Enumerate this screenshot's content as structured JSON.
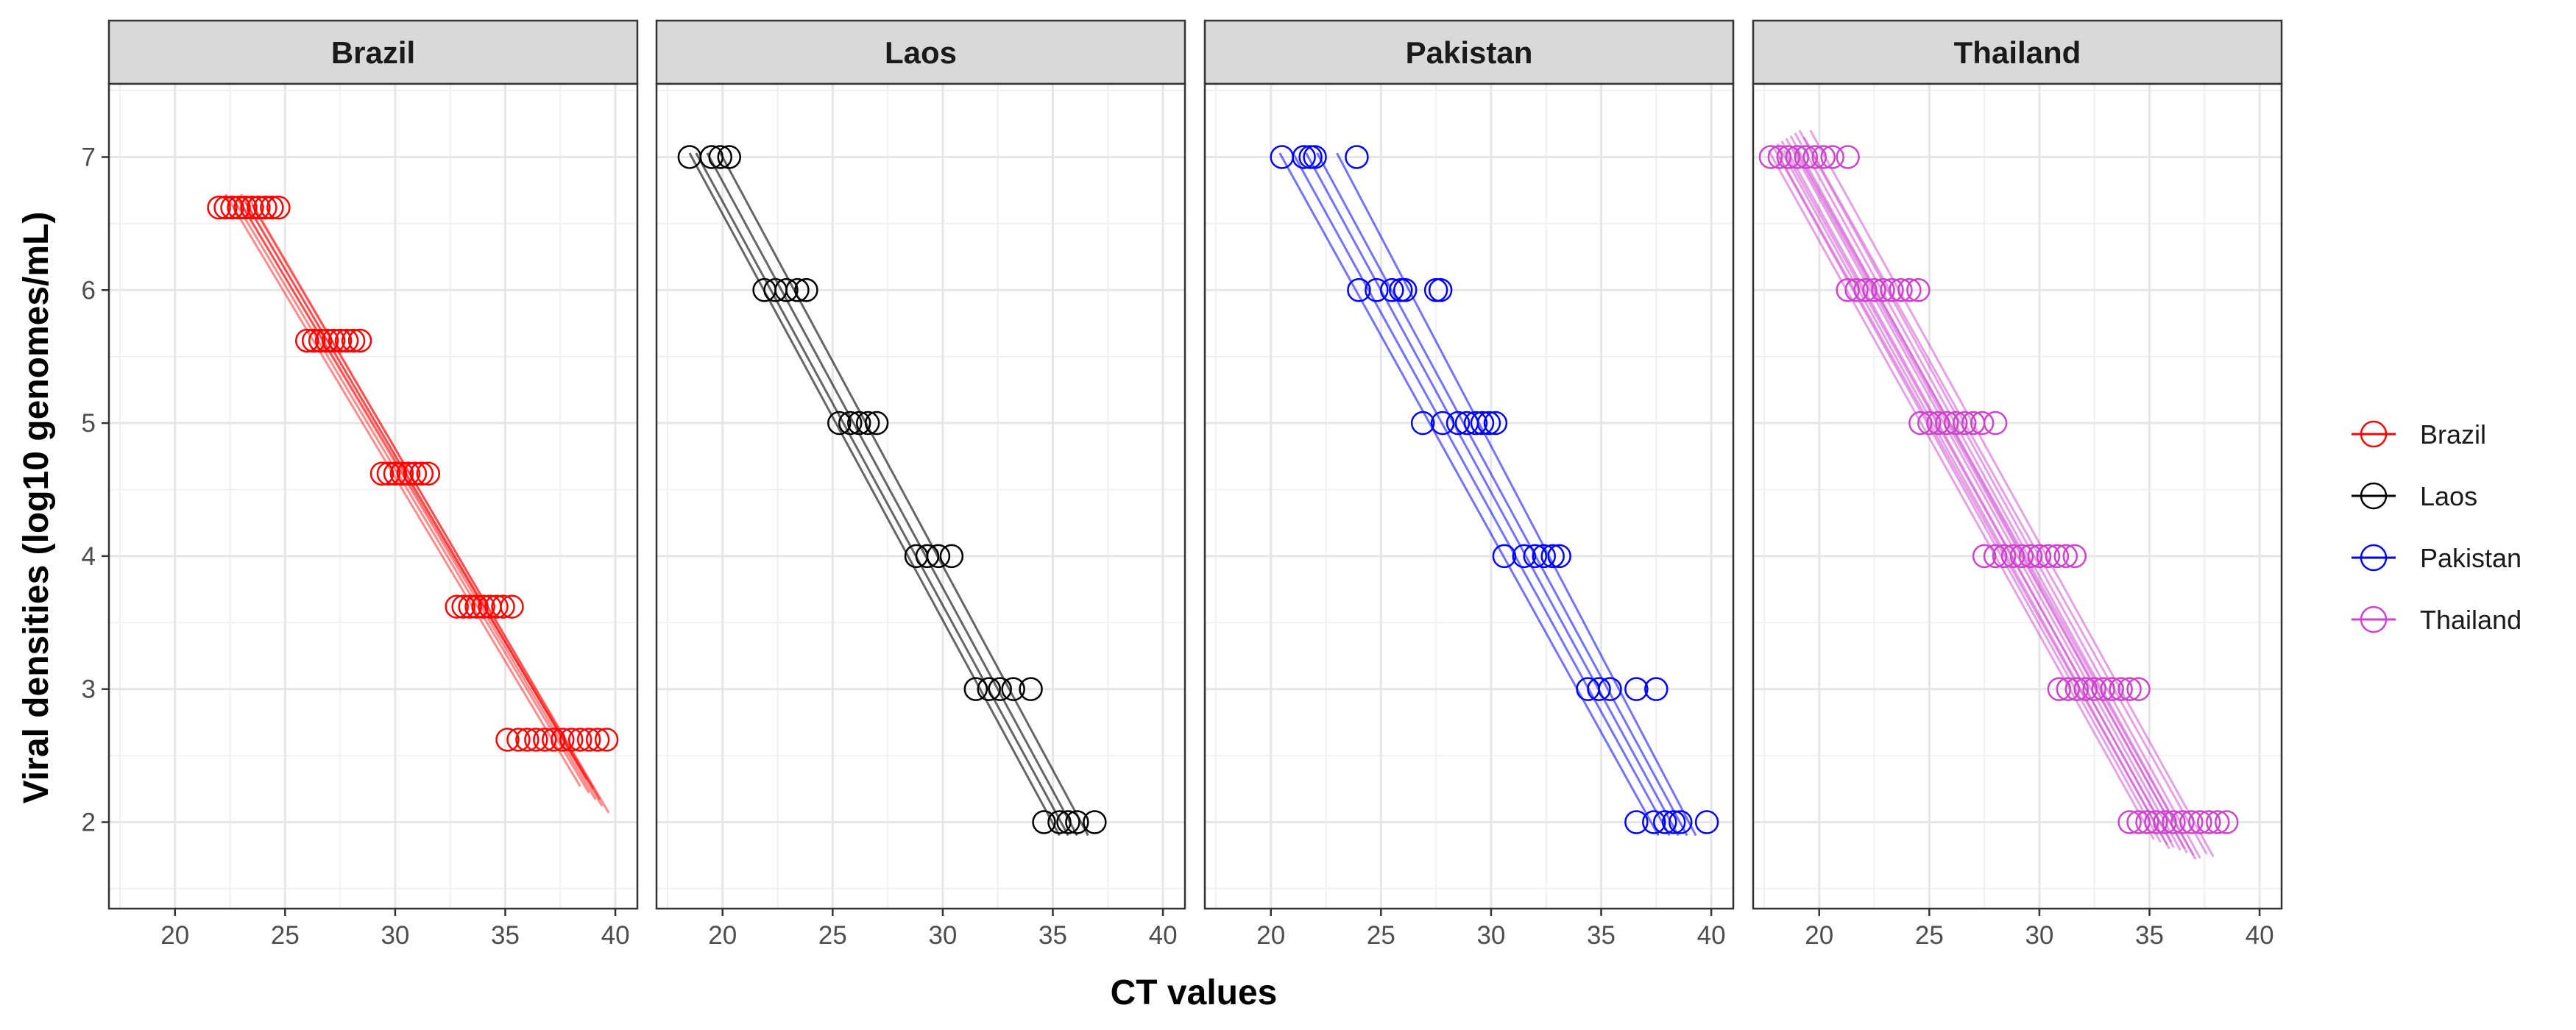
{
  "chart_data": {
    "type": "scatter",
    "xlabel": "CT values",
    "ylabel": "Viral densities (log10 genomes/mL)",
    "xlim": [
      17,
      41
    ],
    "ylim": [
      1.35,
      7.55
    ],
    "x_ticks": [
      20,
      25,
      30,
      35,
      40
    ],
    "x_tick_labels": [
      "20",
      "25",
      "30",
      "35",
      "40"
    ],
    "y_ticks": [
      2,
      3,
      4,
      5,
      6,
      7
    ],
    "y_tick_labels": [
      "2",
      "3",
      "4",
      "5",
      "6",
      "7"
    ],
    "grid": true,
    "legend_position": "right",
    "facets": [
      {
        "name": "Brazil",
        "color": "#ff0000",
        "line_opacity": 0.45,
        "points": [
          {
            "y": 6.62,
            "x": [
              22.0,
              22.3,
              22.6,
              22.9,
              23.2,
              23.5,
              23.8,
              24.1,
              24.4,
              24.7
            ]
          },
          {
            "y": 5.62,
            "x": [
              26.0,
              26.3,
              26.6,
              26.9,
              27.2,
              27.5,
              27.8,
              28.1,
              28.4
            ]
          },
          {
            "y": 4.62,
            "x": [
              29.4,
              29.7,
              30.0,
              30.3,
              30.6,
              30.9,
              31.2,
              31.5
            ]
          },
          {
            "y": 3.62,
            "x": [
              32.8,
              33.1,
              33.4,
              33.7,
              34.0,
              34.3,
              34.6,
              34.9,
              35.3
            ]
          },
          {
            "y": 2.62,
            "x": [
              35.1,
              35.6,
              36.0,
              36.4,
              36.8,
              37.2,
              37.6,
              38.0,
              38.4,
              38.8,
              39.2,
              39.6
            ]
          }
        ],
        "fits": [
          {
            "x_start": 22.3,
            "y_start": 6.72,
            "x_end": 38.4,
            "y_end": 2.27
          },
          {
            "x_start": 22.6,
            "y_start": 6.7,
            "x_end": 38.8,
            "y_end": 2.22
          },
          {
            "x_start": 22.9,
            "y_start": 6.68,
            "x_end": 39.1,
            "y_end": 2.17
          },
          {
            "x_start": 23.2,
            "y_start": 6.66,
            "x_end": 39.4,
            "y_end": 2.12
          },
          {
            "x_start": 23.5,
            "y_start": 6.64,
            "x_end": 39.7,
            "y_end": 2.07
          },
          {
            "x_start": 23.0,
            "y_start": 6.72,
            "x_end": 38.7,
            "y_end": 2.32
          },
          {
            "x_start": 22.8,
            "y_start": 6.7,
            "x_end": 39.0,
            "y_end": 2.25
          },
          {
            "x_start": 23.4,
            "y_start": 6.68,
            "x_end": 39.3,
            "y_end": 2.17
          }
        ]
      },
      {
        "name": "Laos",
        "color": "#000000",
        "line_opacity": 0.6,
        "points": [
          {
            "y": 7.0,
            "x": [
              18.5,
              19.5,
              19.9,
              20.3
            ]
          },
          {
            "y": 6.0,
            "x": [
              21.9,
              22.4,
              22.9,
              23.4,
              23.8
            ]
          },
          {
            "y": 5.0,
            "x": [
              25.3,
              25.8,
              26.2,
              26.6,
              27.0
            ]
          },
          {
            "y": 4.0,
            "x": [
              28.8,
              29.3,
              29.8,
              30.4
            ]
          },
          {
            "y": 3.0,
            "x": [
              31.5,
              32.1,
              32.6,
              33.2,
              34.0
            ]
          },
          {
            "y": 2.0,
            "x": [
              34.6,
              35.3,
              35.7,
              36.1,
              36.9
            ]
          }
        ],
        "fits": [
          {
            "x_start": 18.5,
            "y_start": 7.03,
            "x_end": 35.3,
            "y_end": 1.9
          },
          {
            "x_start": 18.8,
            "y_start": 7.03,
            "x_end": 35.7,
            "y_end": 1.9
          },
          {
            "x_start": 19.3,
            "y_start": 7.03,
            "x_end": 36.1,
            "y_end": 1.9
          },
          {
            "x_start": 19.9,
            "y_start": 7.03,
            "x_end": 36.6,
            "y_end": 1.9
          }
        ]
      },
      {
        "name": "Pakistan",
        "color": "#0000ff",
        "line_opacity": 0.55,
        "points": [
          {
            "y": 7.0,
            "x": [
              20.5,
              21.5,
              21.8,
              22.0,
              23.9
            ]
          },
          {
            "y": 6.0,
            "x": [
              24.0,
              24.8,
              25.5,
              25.9,
              26.1,
              27.5,
              27.7
            ]
          },
          {
            "y": 5.0,
            "x": [
              26.9,
              27.8,
              28.5,
              28.9,
              29.3,
              29.6,
              29.9,
              30.2
            ]
          },
          {
            "y": 4.0,
            "x": [
              30.6,
              31.5,
              32.0,
              32.4,
              32.8,
              33.1
            ]
          },
          {
            "y": 3.0,
            "x": [
              34.4,
              34.9,
              35.4,
              36.6,
              37.5
            ]
          },
          {
            "y": 2.0,
            "x": [
              36.6,
              37.4,
              37.9,
              38.3,
              38.6,
              39.8
            ]
          }
        ],
        "fits": [
          {
            "x_start": 20.4,
            "y_start": 7.03,
            "x_end": 37.6,
            "y_end": 1.9
          },
          {
            "x_start": 21.0,
            "y_start": 7.03,
            "x_end": 38.1,
            "y_end": 1.9
          },
          {
            "x_start": 21.6,
            "y_start": 7.03,
            "x_end": 38.5,
            "y_end": 1.9
          },
          {
            "x_start": 22.1,
            "y_start": 7.03,
            "x_end": 38.9,
            "y_end": 1.9
          },
          {
            "x_start": 23.0,
            "y_start": 7.03,
            "x_end": 39.3,
            "y_end": 1.9
          }
        ]
      },
      {
        "name": "Thailand",
        "color": "#cc44cc",
        "line_opacity": 0.5,
        "points": [
          {
            "y": 7.0,
            "x": [
              17.8,
              18.2,
              18.6,
              19.0,
              19.4,
              19.8,
              20.2,
              20.6,
              21.3
            ]
          },
          {
            "y": 6.0,
            "x": [
              21.3,
              21.7,
              22.1,
              22.5,
              22.9,
              23.3,
              23.7,
              24.1,
              24.5
            ]
          },
          {
            "y": 5.0,
            "x": [
              24.6,
              25.0,
              25.4,
              25.8,
              26.2,
              26.6,
              27.0,
              27.4,
              28.0
            ]
          },
          {
            "y": 4.0,
            "x": [
              27.5,
              28.0,
              28.4,
              28.8,
              29.2,
              29.6,
              30.0,
              30.4,
              30.8,
              31.2,
              31.6
            ]
          },
          {
            "y": 3.0,
            "x": [
              30.9,
              31.3,
              31.7,
              32.1,
              32.5,
              32.9,
              33.3,
              33.7,
              34.1,
              34.5
            ]
          },
          {
            "y": 2.0,
            "x": [
              34.1,
              34.5,
              34.9,
              35.3,
              35.7,
              36.1,
              36.5,
              36.9,
              37.3,
              37.7,
              38.1,
              38.5
            ]
          }
        ],
        "fits": [
          {
            "x_start": 17.7,
            "y_start": 7.05,
            "x_end": 35.2,
            "y_end": 1.87
          },
          {
            "x_start": 17.9,
            "y_start": 7.08,
            "x_end": 35.5,
            "y_end": 1.85
          },
          {
            "x_start": 18.1,
            "y_start": 7.1,
            "x_end": 35.8,
            "y_end": 1.83
          },
          {
            "x_start": 18.3,
            "y_start": 7.12,
            "x_end": 36.1,
            "y_end": 1.81
          },
          {
            "x_start": 18.5,
            "y_start": 7.14,
            "x_end": 36.4,
            "y_end": 1.79
          },
          {
            "x_start": 18.7,
            "y_start": 7.16,
            "x_end": 36.7,
            "y_end": 1.77
          },
          {
            "x_start": 18.9,
            "y_start": 7.18,
            "x_end": 37.0,
            "y_end": 1.75
          },
          {
            "x_start": 19.1,
            "y_start": 7.2,
            "x_end": 37.3,
            "y_end": 1.73
          },
          {
            "x_start": 18.4,
            "y_start": 7.05,
            "x_end": 36.0,
            "y_end": 1.85
          },
          {
            "x_start": 18.8,
            "y_start": 7.08,
            "x_end": 36.6,
            "y_end": 1.8
          },
          {
            "x_start": 19.3,
            "y_start": 7.15,
            "x_end": 37.6,
            "y_end": 1.76
          },
          {
            "x_start": 19.6,
            "y_start": 7.2,
            "x_end": 37.9,
            "y_end": 1.74
          },
          {
            "x_start": 18.2,
            "y_start": 7.0,
            "x_end": 35.9,
            "y_end": 1.8
          },
          {
            "x_start": 19.0,
            "y_start": 7.04,
            "x_end": 37.1,
            "y_end": 1.72
          }
        ]
      }
    ]
  }
}
